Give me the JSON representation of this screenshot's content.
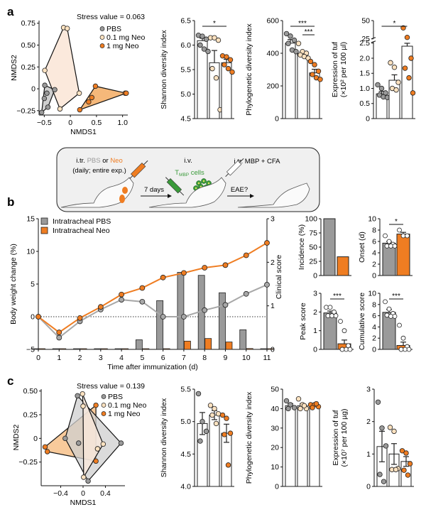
{
  "colors": {
    "pbs": "#9a9a9a",
    "neo01": "#fde2c0",
    "neo1": "#ef7d22",
    "pbs_fill": "#cfcfcf",
    "neo01_fill": "#fbe9dc",
    "neo1_fill": "#f5b87a",
    "panel_bg": "#f0f0f0",
    "green": "#3a9a3a"
  },
  "panel_labels": {
    "a": "a",
    "b": "b",
    "c": "c"
  },
  "legend_groups": [
    "PBS",
    "0.1 mg Neo",
    "1 mg Neo"
  ],
  "schematic": {
    "step1_prefix": "i.tr. ",
    "step1_pbs": "PBS",
    "step1_or": " or ",
    "step1_neo": "Neo",
    "step1_sub": "(daily; entire exp.)",
    "arrow1": "7 days",
    "step2_top": "i.v.",
    "step2_T": "T",
    "step2_sub": "MBP",
    "step2_cells": " cells",
    "step3": "i.tr. MBP + CFA",
    "arrow2": "EAE?"
  },
  "chart_data": [
    {
      "id": "a-nmds",
      "type": "scatter",
      "title": "Stress value = 0.063",
      "xlabel": "NMDS1",
      "ylabel": "NMDS2",
      "xlim": [
        -0.6,
        1.1
      ],
      "ylim": [
        -0.3,
        0.78
      ],
      "xticks": [
        -0.5,
        0,
        0.5,
        1.0
      ],
      "xtick_labels": [
        "−0.5",
        "0",
        "0.5",
        "1.0"
      ],
      "yticks": [
        -0.25,
        0,
        0.25,
        0.5,
        0.75
      ],
      "ytick_labels": [
        "−0.25",
        "0",
        "0.25",
        "0.50",
        "0.75"
      ],
      "series": [
        {
          "name": "PBS",
          "points": [
            [
              -0.55,
              -0.27
            ],
            [
              -0.49,
              0.04
            ],
            [
              -0.5,
              -0.11
            ],
            [
              -0.45,
              -0.05
            ],
            [
              -0.43,
              -0.21
            ],
            [
              -0.3,
              -0.01
            ]
          ],
          "hull": [
            [
              -0.55,
              -0.27
            ],
            [
              -0.49,
              0.04
            ],
            [
              -0.3,
              -0.01
            ],
            [
              -0.43,
              -0.21
            ]
          ]
        },
        {
          "name": "0.1 mg Neo",
          "points": [
            [
              -0.13,
              0.7
            ],
            [
              -0.06,
              0.69
            ],
            [
              -0.49,
              0.21
            ],
            [
              0.17,
              -0.05
            ],
            [
              -0.2,
              -0.23
            ]
          ],
          "hull": [
            [
              -0.13,
              0.7
            ],
            [
              -0.06,
              0.69
            ],
            [
              0.17,
              -0.05
            ],
            [
              -0.2,
              -0.23
            ],
            [
              -0.49,
              0.21
            ]
          ]
        },
        {
          "name": "1 mg Neo",
          "points": [
            [
              0.48,
              0.03
            ],
            [
              1.05,
              -0.05
            ],
            [
              0.18,
              -0.24
            ],
            [
              0.35,
              -0.15
            ],
            [
              0.41,
              -0.1
            ],
            [
              1.07,
              -0.05
            ]
          ],
          "hull": [
            [
              0.48,
              0.03
            ],
            [
              1.07,
              -0.05
            ],
            [
              0.18,
              -0.24
            ]
          ]
        }
      ]
    },
    {
      "id": "a-shannon",
      "type": "bar",
      "ylabel": "Shannon diversity index",
      "ylim": [
        4.5,
        6.5
      ],
      "yticks": [
        4.5,
        5.0,
        5.5,
        6.0,
        6.5
      ],
      "ytick_labels": [
        "4.5",
        "5.0",
        "5.5",
        "6.0",
        "6.5"
      ],
      "categories": [
        "PBS",
        "0.1 mg Neo",
        "1 mg Neo"
      ],
      "values": [
        6.09,
        5.64,
        5.64
      ],
      "errors": [
        0.05,
        0.25,
        0.07
      ],
      "points": [
        [
          6.2,
          6.18,
          6.12,
          6.0,
          5.92,
          5.87
        ],
        [
          6.15,
          6.15,
          6.1,
          5.52,
          5.33,
          4.68
        ],
        [
          5.78,
          5.76,
          5.7,
          5.6,
          5.52,
          5.45
        ]
      ],
      "significance": [
        {
          "from": 0,
          "to": 2,
          "label": "*"
        }
      ]
    },
    {
      "id": "a-phylo",
      "type": "bar",
      "ylabel": "Phylogenetic diversity index",
      "ylim": [
        0,
        600
      ],
      "yticks": [
        0,
        200,
        400,
        600
      ],
      "ytick_labels": [
        "0",
        "200",
        "400",
        "600"
      ],
      "categories": [
        "PBS",
        "0.1 mg Neo",
        "1 mg Neo"
      ],
      "values": [
        462,
        398,
        280
      ],
      "errors": [
        22,
        12,
        22
      ],
      "points": [
        [
          520,
          505,
          480,
          460,
          420,
          410
        ],
        [
          460,
          410,
          400,
          390,
          380,
          370
        ],
        [
          350,
          330,
          290,
          270,
          250,
          240
        ]
      ],
      "significance": [
        {
          "from": 0,
          "to": 2,
          "label": "***"
        },
        {
          "from": 1,
          "to": 2,
          "label": "***"
        }
      ]
    },
    {
      "id": "a-tuf",
      "type": "bar",
      "ylabel": "Expression of tuf",
      "ylabel2": "(×10² per 100 µl)",
      "ylim": [
        0,
        50
      ],
      "axis_break": [
        2.5,
        25
      ],
      "yticks": [
        0,
        0.5,
        1.0,
        1.5,
        2.0,
        2.5,
        25,
        50
      ],
      "ytick_labels": [
        "0",
        "0.5",
        "1.0",
        "1.5",
        "2.0",
        "2.5",
        "25",
        "50"
      ],
      "categories": [
        "PBS",
        "0.1 mg Neo",
        "1 mg Neo"
      ],
      "values": [
        0.82,
        1.27,
        15
      ],
      "errors": [
        0.08,
        0.18,
        4
      ],
      "points": [
        [
          1.12,
          1.0,
          0.85,
          0.78,
          0.72,
          0.7
        ],
        [
          1.85,
          1.7,
          1.2,
          1.0,
          0.95
        ],
        [
          40,
          27,
          2.0,
          1.67,
          1.35,
          0.85
        ]
      ],
      "significance": [
        {
          "from": 0,
          "to": 2,
          "label": "*"
        }
      ]
    },
    {
      "id": "b-weight-clinical",
      "type": "line",
      "xlabel": "Time after immunization (d)",
      "ylabel": "Body weight change (%)",
      "ylabel_right": "Clinical score",
      "x": [
        0,
        1,
        2,
        3,
        4,
        5,
        6,
        7,
        8,
        9,
        10,
        11
      ],
      "ylim": [
        -5,
        15
      ],
      "yticks": [
        -5,
        0,
        5,
        10,
        15
      ],
      "ytick_labels": [
        "−5",
        "0",
        "5",
        "10",
        "15"
      ],
      "ylim_right": [
        0,
        3
      ],
      "yticks_right": [
        0,
        1,
        2,
        3
      ],
      "legend": [
        "Intratracheal PBS",
        "Intratracheal Neo"
      ],
      "legend_position": "top-left",
      "series": [
        {
          "name": "Intratracheal PBS",
          "weight": [
            0,
            -3.2,
            -0.7,
            1.1,
            2.6,
            2.3,
            0,
            0,
            1.0,
            1.8,
            3.5,
            4.9
          ],
          "clinical": [
            0,
            0,
            0,
            0,
            0,
            0.22,
            1.12,
            1.77,
            1.7,
            1.3,
            0.45,
            0
          ]
        },
        {
          "name": "Intratracheal Neo",
          "weight": [
            0,
            -2.4,
            -0.2,
            1.5,
            3.4,
            4.4,
            6.0,
            6.7,
            7.5,
            7.9,
            9.4,
            11.3
          ],
          "clinical": [
            0,
            0,
            0,
            0,
            0,
            0,
            0,
            0.19,
            0.25,
            0.17,
            0.02,
            0
          ]
        }
      ]
    },
    {
      "id": "b-incidence",
      "type": "bar",
      "ylabel": "Incidence (%)",
      "ylim": [
        0,
        100
      ],
      "yticks": [
        0,
        25,
        50,
        75,
        100
      ],
      "categories": [
        "PBS",
        "Neo"
      ],
      "values": [
        100,
        33
      ]
    },
    {
      "id": "b-onset",
      "type": "bar",
      "ylabel": "Onset (d)",
      "ylim": [
        0,
        10
      ],
      "yticks": [
        0,
        2,
        4,
        6,
        8,
        10
      ],
      "categories": [
        "PBS",
        "Neo"
      ],
      "values": [
        5.7,
        7.3
      ],
      "errors": [
        0.3,
        0.3
      ],
      "points": [
        [
          7,
          6,
          5.5,
          5.2,
          5.2,
          5.2
        ],
        [
          8,
          7,
          7
        ]
      ],
      "significance": [
        {
          "from": 0,
          "to": 1,
          "label": "*"
        }
      ]
    },
    {
      "id": "b-peak",
      "type": "bar",
      "ylabel": "Peak score",
      "ylim": [
        0,
        3
      ],
      "yticks": [
        0,
        1,
        2,
        3
      ],
      "categories": [
        "PBS",
        "Neo"
      ],
      "values": [
        1.95,
        0.3
      ],
      "errors": [
        0.1,
        0.2
      ],
      "points": [
        [
          2.25,
          2.25,
          2.0,
          1.8,
          1.8,
          1.8
        ],
        [
          1.5,
          1.0,
          0.2,
          0,
          0,
          0,
          0
        ]
      ],
      "significance": [
        {
          "from": 0,
          "to": 1,
          "label": "***"
        }
      ]
    },
    {
      "id": "b-cumulative",
      "type": "bar",
      "ylabel": "Cumulative score",
      "ylim": [
        0,
        10
      ],
      "yticks": [
        0,
        2,
        4,
        6,
        8,
        10
      ],
      "categories": [
        "PBS",
        "Neo"
      ],
      "values": [
        6.6,
        0.7
      ],
      "errors": [
        0.5,
        0.6
      ],
      "points": [
        [
          8.5,
          7.2,
          6.4,
          6.1,
          5.9,
          5.9
        ],
        [
          4.3,
          2.0,
          0.5,
          0,
          0,
          0,
          0
        ]
      ],
      "significance": [
        {
          "from": 0,
          "to": 1,
          "label": "***"
        }
      ]
    },
    {
      "id": "c-nmds",
      "type": "scatter",
      "title": "Stress value = 0.139",
      "xlabel": "NMDS1",
      "ylabel": "NMDS2",
      "xlim": [
        -0.75,
        0.75
      ],
      "ylim": [
        -0.5,
        0.52
      ],
      "xticks": [
        -0.4,
        0,
        0.4
      ],
      "xtick_labels": [
        "−0.4",
        "0",
        "0.4"
      ],
      "yticks": [
        -0.25,
        0,
        0.25,
        0.5
      ],
      "ytick_labels": [
        "−0.25",
        "0",
        "0.25",
        "0.50"
      ],
      "series": [
        {
          "name": "PBS",
          "points": [
            [
              -0.1,
              0.45
            ],
            [
              0.68,
              -0.05
            ],
            [
              0.09,
              -0.45
            ],
            [
              -0.32,
              0
            ],
            [
              0.26,
              -0.11
            ],
            [
              -0.08,
              -0.05
            ]
          ],
          "hull": [
            [
              -0.1,
              0.45
            ],
            [
              0.68,
              -0.05
            ],
            [
              0.09,
              -0.45
            ],
            [
              -0.32,
              0
            ]
          ]
        },
        {
          "name": "0.1 mg Neo",
          "points": [
            [
              -0.01,
              0.47
            ],
            [
              0.36,
              -0.06
            ],
            [
              0.01,
              -0.41
            ],
            [
              0.0,
              0.34
            ],
            [
              0.26,
              -0.11
            ]
          ],
          "hull": [
            [
              -0.01,
              0.47
            ],
            [
              0.36,
              -0.06
            ],
            [
              0.01,
              -0.41
            ],
            [
              0.0,
              0.34
            ]
          ]
        },
        {
          "name": "1 mg Neo",
          "points": [
            [
              0.23,
              0.35
            ],
            [
              -0.68,
              -0.09
            ],
            [
              -0.64,
              -0.14
            ],
            [
              0.23,
              -0.24
            ]
          ],
          "hull": [
            [
              0.23,
              0.35
            ],
            [
              0.23,
              -0.24
            ],
            [
              -0.64,
              -0.14
            ],
            [
              -0.68,
              -0.09
            ]
          ]
        }
      ]
    },
    {
      "id": "c-shannon",
      "type": "bar",
      "ylabel": "Shannon diversity index",
      "ylim": [
        4.0,
        5.5
      ],
      "yticks": [
        4.0,
        4.5,
        5.0,
        5.5
      ],
      "ytick_labels": [
        "4.0",
        "4.5",
        "5.0",
        "5.5"
      ],
      "categories": [
        "PBS",
        "0.1 mg Neo",
        "1 mg Neo"
      ],
      "values": [
        4.97,
        5.1
      ],
      "values_all": [
        4.97,
        5.1,
        4.82
      ],
      "errors": [
        0.17,
        0.07,
        0.14
      ],
      "points": [
        [
          5.43,
          5.0,
          4.85,
          4.7
        ],
        [
          5.25,
          5.2,
          5.12,
          5.1,
          4.97
        ],
        [
          5.1,
          5.05,
          4.82,
          4.8,
          4.33
        ]
      ]
    },
    {
      "id": "c-phylo",
      "type": "bar",
      "ylabel": "Phylogenetic diversity index",
      "ylim": [
        0,
        50
      ],
      "yticks": [
        0,
        10,
        20,
        30,
        40,
        50
      ],
      "categories": [
        "PBS",
        "0.1 mg Neo",
        "1 mg Neo"
      ],
      "values": [
        41.5,
        41.5,
        41.8
      ],
      "errors": [
        1,
        1,
        0.5
      ],
      "points": [
        [
          44,
          42,
          40.5,
          40
        ],
        [
          45,
          42,
          40,
          40,
          41.5
        ],
        [
          42,
          42,
          41,
          40.5,
          42.5
        ]
      ]
    },
    {
      "id": "c-tuf",
      "type": "bar",
      "ylabel": "Expression of tuf",
      "ylabel2": "(×10⁷ per 100 µg)",
      "ylim": [
        0,
        3
      ],
      "yticks": [
        0,
        1,
        2,
        3
      ],
      "categories": [
        "PBS",
        "0.1 mg Neo",
        "1 mg Neo"
      ],
      "values": [
        1.23,
        1.0,
        0.77
      ],
      "errors": [
        0.47,
        0.32,
        0.15
      ],
      "points": [
        [
          2.6,
          1.8,
          1.25,
          0.37,
          0.15
        ],
        [
          1.82,
          1.7,
          0.55,
          0.52,
          0.52
        ],
        [
          1.1,
          1.03,
          0.7,
          0.5,
          0.35
        ]
      ]
    }
  ]
}
